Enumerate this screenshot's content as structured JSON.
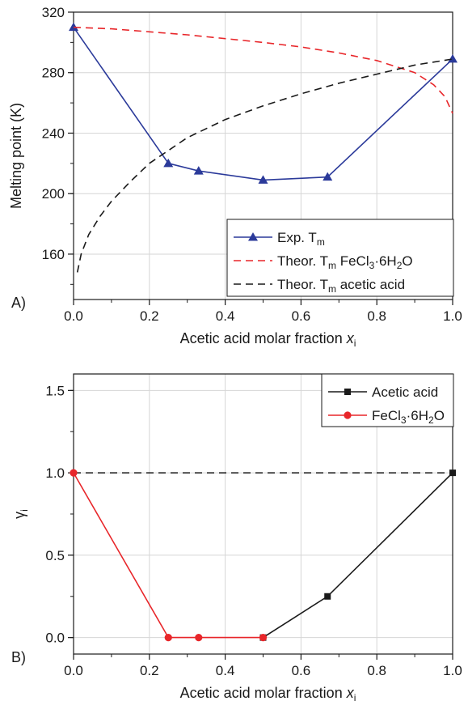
{
  "chart_data": [
    {
      "type": "line",
      "panel_label": "A)",
      "xlabel": "Acetic acid molar fraction",
      "xlabel_var": "x",
      "xlabel_sub": "i",
      "ylabel": "Melting point (K)",
      "xlim": [
        0,
        1
      ],
      "ylim": [
        130,
        320
      ],
      "xticks": [
        0.0,
        0.2,
        0.4,
        0.6,
        0.8,
        1.0
      ],
      "xtick_labels": [
        "0.0",
        "0.2",
        "0.4",
        "0.6",
        "0.8",
        "1.0"
      ],
      "yticks": [
        160,
        200,
        240,
        280,
        320
      ],
      "ytick_labels": [
        "160",
        "200",
        "240",
        "280",
        "320"
      ],
      "grid": true,
      "legend_position": "bottom-right",
      "series": [
        {
          "name": "Exp. Tm",
          "legend_parts": [
            "Exp. T",
            "m",
            ""
          ],
          "style": "solid",
          "marker": "triangle",
          "color": "#2b3a9a",
          "x": [
            0.0,
            0.25,
            0.33,
            0.5,
            0.67,
            1.0
          ],
          "y": [
            310,
            220,
            215,
            209,
            211,
            289
          ]
        },
        {
          "name": "Theor. Tm FeCl3·6H2O",
          "legend_parts": [
            "Theor. T",
            "m",
            " FeCl",
            "3",
            "·6H",
            "2",
            "O"
          ],
          "style": "dashed",
          "marker": "none",
          "color": "#e8262a",
          "x": [
            0.0,
            0.1,
            0.2,
            0.3,
            0.4,
            0.5,
            0.6,
            0.7,
            0.8,
            0.9,
            0.95,
            0.98,
            1.0
          ],
          "y": [
            310,
            309,
            307,
            305,
            302.5,
            300,
            297,
            293,
            288,
            280,
            272,
            264,
            253
          ]
        },
        {
          "name": "Theor. Tm acetic acid",
          "legend_parts": [
            "Theor. T",
            "m",
            " acetic acid"
          ],
          "style": "dashed",
          "marker": "none",
          "color": "#1a1a1a",
          "x": [
            0.01,
            0.02,
            0.04,
            0.07,
            0.1,
            0.15,
            0.2,
            0.3,
            0.4,
            0.5,
            0.6,
            0.7,
            0.8,
            0.9,
            1.0
          ],
          "y": [
            148,
            160,
            173,
            185,
            195,
            208,
            220,
            237,
            249,
            258,
            266,
            273,
            279,
            285,
            289
          ]
        }
      ]
    },
    {
      "type": "line",
      "panel_label": "B)",
      "xlabel": "Acetic acid molar fraction",
      "xlabel_var": "x",
      "xlabel_sub": "i",
      "ylabel": "γ",
      "ylabel_sub": "i",
      "xlim": [
        0,
        1
      ],
      "ylim": [
        -0.1,
        1.6
      ],
      "xticks": [
        0.0,
        0.2,
        0.4,
        0.6,
        0.8,
        1.0
      ],
      "xtick_labels": [
        "0.0",
        "0.2",
        "0.4",
        "0.6",
        "0.8",
        "1.0"
      ],
      "yticks": [
        0.0,
        0.5,
        1.0,
        1.5
      ],
      "ytick_labels": [
        "0.0",
        "0.5",
        "1.0",
        "1.5"
      ],
      "grid": true,
      "legend_position": "top-right",
      "reference_line": {
        "y": 1.0,
        "style": "dashed",
        "color": "#1a1a1a"
      },
      "series": [
        {
          "name": "Acetic acid",
          "legend_parts": [
            "Acetic acid"
          ],
          "style": "solid",
          "marker": "square",
          "color": "#1a1a1a",
          "x": [
            0.5,
            0.67,
            1.0
          ],
          "y": [
            0.0,
            0.25,
            1.0
          ]
        },
        {
          "name": "FeCl3·6H2O",
          "legend_parts": [
            "FeCl",
            "3",
            "·6H",
            "2",
            "O"
          ],
          "style": "solid",
          "marker": "circle",
          "color": "#e8262a",
          "x": [
            0.0,
            0.25,
            0.33,
            0.5
          ],
          "y": [
            1.0,
            0.0,
            0.0,
            0.0
          ]
        }
      ]
    }
  ]
}
